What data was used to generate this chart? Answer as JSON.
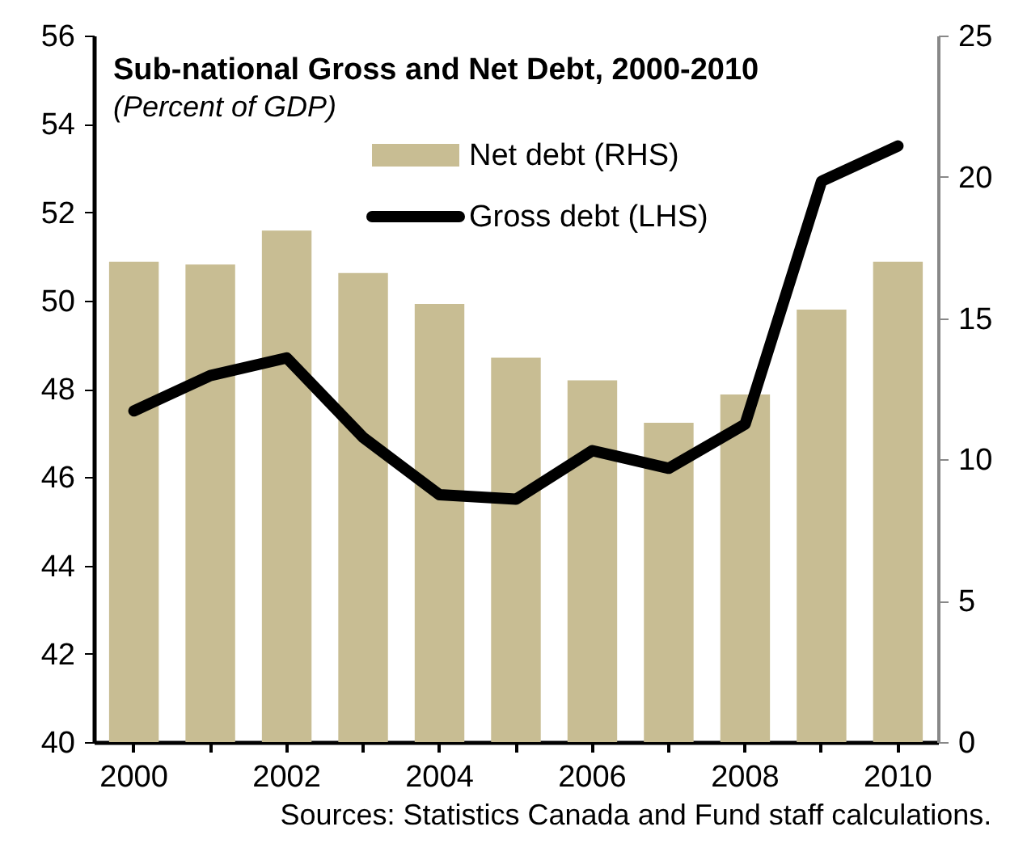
{
  "chart_data": {
    "type": "bar",
    "title": "Sub-national Gross and Net Debt, 2000-2010",
    "subtitle": "(Percent of GDP)",
    "categories": [
      "2000",
      null,
      "2002",
      null,
      "2004",
      null,
      "2006",
      null,
      "2008",
      null,
      "2010"
    ],
    "series": [
      {
        "name": "Net debt (RHS)",
        "axis": "y2",
        "color": "#c8bd93",
        "values": [
          17.0,
          16.9,
          18.1,
          16.6,
          15.5,
          13.6,
          12.8,
          11.3,
          12.3,
          15.3,
          17.0
        ]
      },
      {
        "name": "Gross debt (LHS)",
        "type": "line",
        "color": "#000000",
        "values": [
          47.5,
          48.3,
          48.7,
          46.9,
          45.6,
          45.5,
          46.6,
          46.2,
          47.2,
          52.7,
          53.5
        ]
      }
    ],
    "ylim": [
      40,
      56
    ],
    "yticks": [
      40,
      42,
      44,
      46,
      48,
      50,
      52,
      54,
      56
    ],
    "y2lim": [
      0,
      25
    ],
    "y2ticks": [
      0,
      5,
      10,
      15,
      20,
      25
    ],
    "legend": "top",
    "grid": false,
    "annotations": [
      "Sources: Statistics Canada and Fund staff calculations."
    ]
  }
}
